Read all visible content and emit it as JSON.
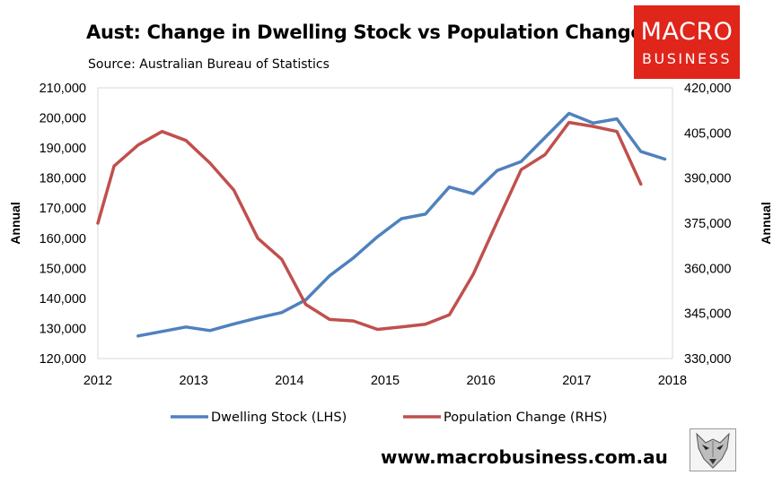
{
  "header": {
    "title": "Aust: Change in Dwelling Stock vs Population Change",
    "source": "Source: Australian Bureau of Statistics"
  },
  "logo": {
    "line1": "MACRO",
    "line2": "BUSINESS"
  },
  "footer": {
    "website": "www.macrobusiness.com.au"
  },
  "colors": {
    "dwelling": "#4f81bd",
    "population": "#c0504d",
    "brand_red": "#e0251b"
  },
  "chart_data": {
    "type": "line",
    "title": "Aust: Change in Dwelling Stock vs Population Change",
    "subtitle": "Source: Australian Bureau of Statistics",
    "xlabel": "",
    "ylabel_left": "Annual",
    "ylabel_right": "Annual",
    "xlim": [
      2012,
      2018
    ],
    "x_ticks": [
      "2012",
      "2013",
      "2014",
      "2015",
      "2016",
      "2017",
      "2018"
    ],
    "ylim_left": [
      120000,
      210000
    ],
    "ylim_right": [
      330000,
      420000
    ],
    "y_ticks_left": [
      "120,000",
      "130,000",
      "140,000",
      "150,000",
      "160,000",
      "170,000",
      "180,000",
      "190,000",
      "200,000",
      "210,000"
    ],
    "y_ticks_right": [
      "330,000",
      "345,000",
      "360,000",
      "375,000",
      "390,000",
      "405,000",
      "420,000"
    ],
    "grid": false,
    "legend_position": "bottom",
    "series": [
      {
        "name": "Dwelling Stock (LHS)",
        "axis": "left",
        "color": "#4f81bd",
        "x": [
          2012.42,
          2012.67,
          2012.92,
          2013.17,
          2013.42,
          2013.67,
          2013.92,
          2014.17,
          2014.42,
          2014.67,
          2014.92,
          2015.17,
          2015.42,
          2015.67,
          2015.92,
          2016.17,
          2016.42,
          2016.67,
          2016.92,
          2017.17,
          2017.42,
          2017.67,
          2017.92
        ],
        "values": [
          127500,
          129000,
          130500,
          129300,
          131500,
          133500,
          135300,
          139500,
          147500,
          153500,
          160500,
          166500,
          168000,
          177000,
          174800,
          182500,
          185500,
          193500,
          201500,
          198300,
          199700,
          188800,
          186300
        ]
      },
      {
        "name": "Population Change (RHS)",
        "axis": "right",
        "color": "#c0504d",
        "x": [
          2012.0,
          2012.17,
          2012.42,
          2012.67,
          2012.92,
          2013.17,
          2013.42,
          2013.67,
          2013.92,
          2014.17,
          2014.42,
          2014.67,
          2014.92,
          2015.17,
          2015.42,
          2015.67,
          2015.92,
          2016.17,
          2016.42,
          2016.67,
          2016.92,
          2017.17,
          2017.42,
          2017.67
        ],
        "values": [
          375000,
          394000,
          401000,
          405500,
          402500,
          395000,
          386000,
          370000,
          363000,
          348000,
          343000,
          342500,
          339700,
          340500,
          341400,
          344500,
          358000,
          375500,
          392800,
          397800,
          408500,
          407200,
          405500,
          388000
        ]
      }
    ]
  }
}
